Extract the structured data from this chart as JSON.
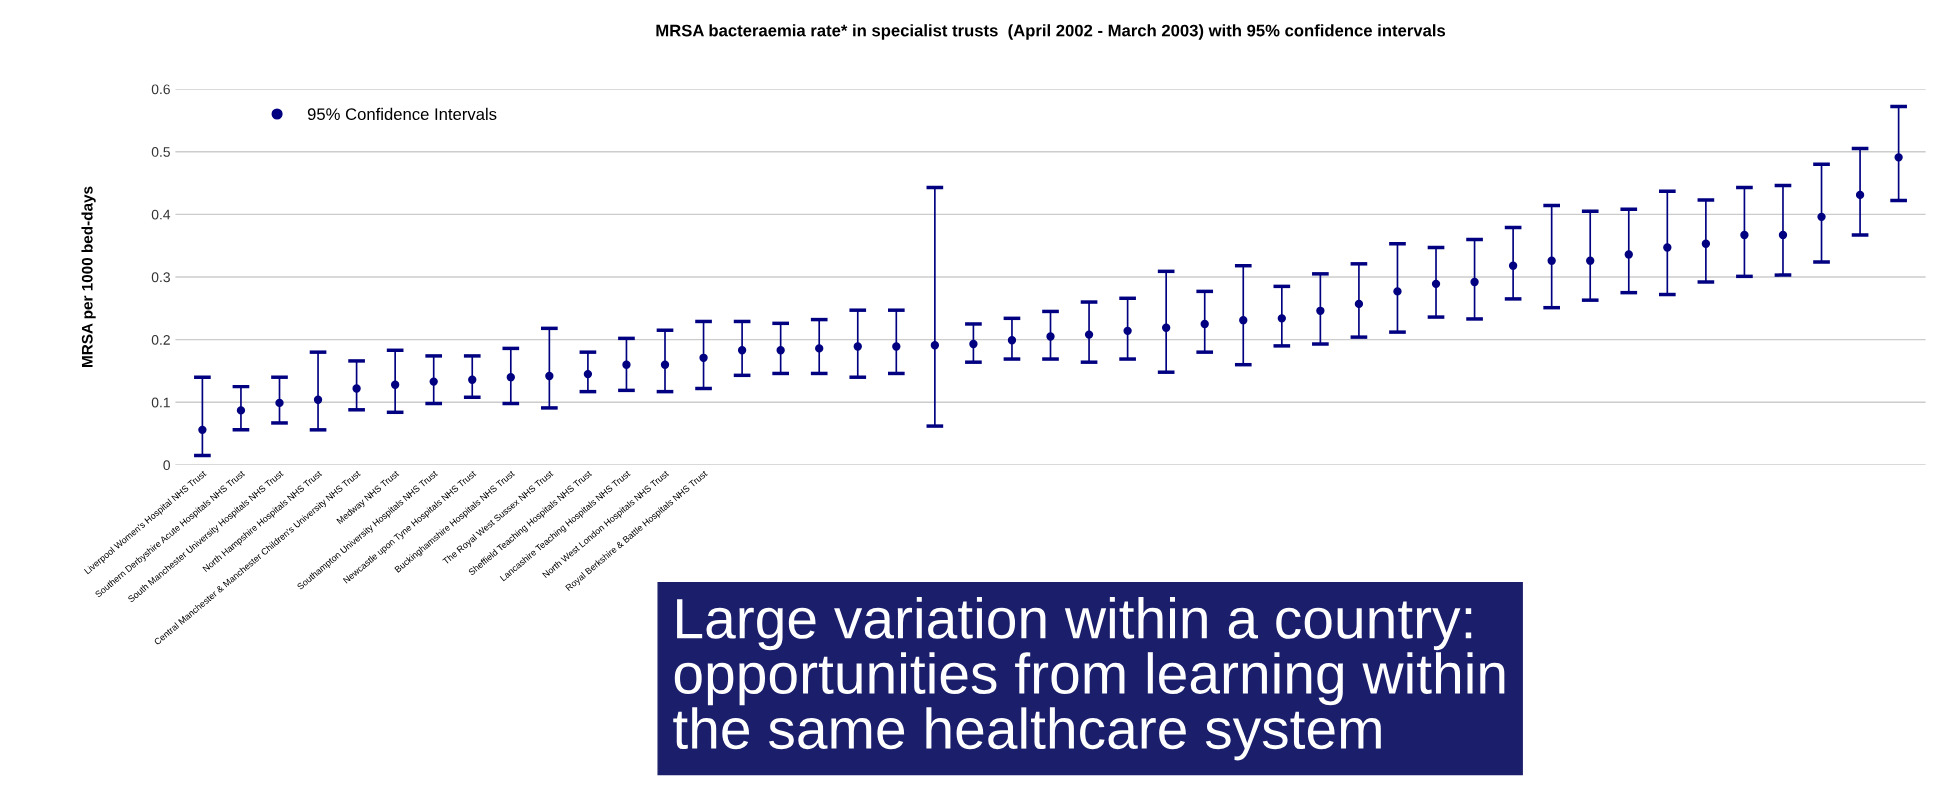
{
  "chart_data": {
    "type": "scatter",
    "title": "MRSA bacteraemia rate* in specialist trusts  (April 2002 - March 2003) with 95% confidence intervals",
    "ylabel": "MRSA per 1000 bed-days",
    "categories": [
      "Liverpool Women's Hospital NHS Trust",
      "Southern Derbyshire Acute Hospitals NHS Trust",
      "South Manchester University Hospitals NHS Trust",
      "North Hampshire Hospitals NHS Trust",
      "Central Manchester & Manchester Children's University NHS Trust",
      "Medway NHS Trust",
      "Southampton University Hospitals NHS Trust",
      "Newcastle upon Tyne Hospitals NHS Trust",
      "Buckinghamshire Hospitals NHS Trust",
      "The Royal West Sussex NHS Trust",
      "Sheffield Teaching Hospitals NHS Trust",
      "Lancashire Teaching Hospitals NHS Trust",
      "North West London Hospitals NHS Trust",
      "Royal Berkshire & Battle Hospitals NHS Trust",
      null,
      null,
      null,
      null,
      null,
      null,
      null,
      null,
      null,
      null,
      null,
      null,
      null,
      null,
      null,
      null,
      null,
      null,
      null,
      null,
      null,
      null,
      null,
      null,
      null,
      null,
      null,
      null,
      null,
      null,
      null
    ],
    "series": [
      {
        "name": "95% Confidence Intervals",
        "color": "#000080",
        "values": [
          0.056,
          0.087,
          0.099,
          0.104,
          0.122,
          0.128,
          0.133,
          0.136,
          0.14,
          0.142,
          0.145,
          0.16,
          0.16,
          0.171,
          0.183,
          0.183,
          0.186,
          0.189,
          0.189,
          0.191,
          0.193,
          0.199,
          0.205,
          0.208,
          0.214,
          0.219,
          0.225,
          0.231,
          0.234,
          0.246,
          0.257,
          0.277,
          0.289,
          0.292,
          0.318,
          0.326,
          0.326,
          0.336,
          0.347,
          0.353,
          0.367,
          0.367,
          0.396,
          0.431,
          0.491
        ],
        "errors": [
          [
            0.015,
            0.14
          ],
          [
            0.056,
            0.125
          ],
          [
            0.067,
            0.14
          ],
          [
            0.056,
            0.18
          ],
          [
            0.088,
            0.166
          ],
          [
            0.084,
            0.183
          ],
          [
            0.098,
            0.174
          ],
          [
            0.108,
            0.174
          ],
          [
            0.098,
            0.186
          ],
          [
            0.091,
            0.218
          ],
          [
            0.117,
            0.18
          ],
          [
            0.119,
            0.202
          ],
          [
            0.117,
            0.215
          ],
          [
            0.122,
            0.229
          ],
          [
            0.143,
            0.229
          ],
          [
            0.146,
            0.226
          ],
          [
            0.146,
            0.232
          ],
          [
            0.14,
            0.247
          ],
          [
            0.146,
            0.247
          ],
          [
            0.062,
            0.443
          ],
          [
            0.164,
            0.225
          ],
          [
            0.169,
            0.234
          ],
          [
            0.169,
            0.245
          ],
          [
            0.164,
            0.26
          ],
          [
            0.169,
            0.266
          ],
          [
            0.148,
            0.309
          ],
          [
            0.18,
            0.277
          ],
          [
            0.16,
            0.318
          ],
          [
            0.19,
            0.285
          ],
          [
            0.193,
            0.305
          ],
          [
            0.204,
            0.321
          ],
          [
            0.212,
            0.353
          ],
          [
            0.236,
            0.347
          ],
          [
            0.233,
            0.36
          ],
          [
            0.265,
            0.379
          ],
          [
            0.251,
            0.414
          ],
          [
            0.263,
            0.405
          ],
          [
            0.275,
            0.408
          ],
          [
            0.272,
            0.437
          ],
          [
            0.292,
            0.423
          ],
          [
            0.301,
            0.443
          ],
          [
            0.303,
            0.446
          ],
          [
            0.324,
            0.48
          ],
          [
            0.367,
            0.505
          ],
          [
            0.422,
            0.572
          ]
        ]
      }
    ],
    "ylim": [
      0,
      0.6
    ],
    "yticks": [
      0,
      0.1,
      0.2,
      0.3,
      0.4,
      0.5,
      0.6
    ],
    "grid": "y",
    "legend": "top left",
    "marker": "circle",
    "annotations": [
      "Large variation within a country:\nopportunities from learning within\nthe same healthcare system"
    ]
  }
}
